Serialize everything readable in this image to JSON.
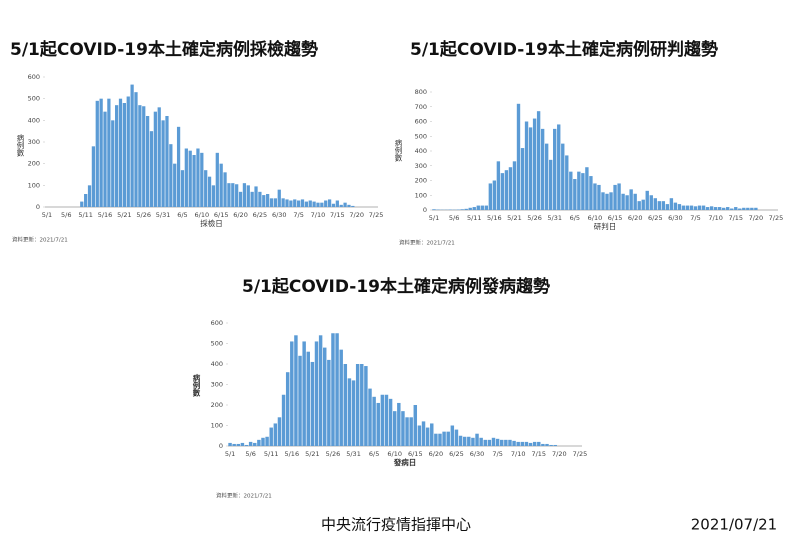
{
  "chart_data": [
    {
      "type": "bar",
      "title": "5/1起COVID-19本土確定病例採檢趨勢",
      "x_label": "採檢日",
      "y_label": "病例數",
      "source": "資料更新：2021/7/21",
      "color": "#5b9bd5",
      "categories": [
        "5/1",
        null,
        null,
        null,
        null,
        "5/6",
        null,
        null,
        null,
        null,
        "5/11",
        null,
        null,
        null,
        null,
        "5/16",
        null,
        null,
        null,
        null,
        "5/21",
        null,
        null,
        null,
        null,
        "5/26",
        null,
        null,
        null,
        null,
        "5/31",
        null,
        null,
        null,
        null,
        "6/5",
        null,
        null,
        null,
        null,
        "6/10",
        null,
        null,
        null,
        null,
        "6/15",
        null,
        null,
        null,
        null,
        "6/20",
        null,
        null,
        null,
        null,
        "6/25",
        null,
        null,
        null,
        null,
        "6/30",
        null,
        null,
        null,
        null,
        "7/5",
        null,
        null,
        null,
        null,
        "7/10",
        null,
        null,
        null,
        null,
        "7/15",
        null,
        null,
        null,
        null,
        "7/20",
        null,
        null,
        null,
        null,
        "7/25"
      ],
      "values": [
        0,
        0,
        0,
        0,
        0,
        0,
        0,
        0,
        0,
        25,
        60,
        100,
        280,
        490,
        500,
        440,
        500,
        400,
        470,
        500,
        480,
        510,
        565,
        530,
        470,
        465,
        420,
        350,
        440,
        460,
        400,
        420,
        290,
        200,
        370,
        170,
        270,
        260,
        240,
        270,
        250,
        170,
        140,
        100,
        250,
        200,
        160,
        110,
        110,
        105,
        70,
        110,
        100,
        70,
        95,
        70,
        55,
        60,
        40,
        40,
        80,
        40,
        35,
        30,
        35,
        30,
        35,
        25,
        30,
        25,
        20,
        20,
        30,
        35,
        15,
        30,
        10,
        20,
        10,
        5,
        0,
        0,
        0,
        0,
        0,
        0
      ],
      "ylim": [
        0,
        600
      ],
      "yticks": [
        0,
        100,
        200,
        300,
        400,
        500,
        600
      ]
    },
    {
      "type": "bar",
      "title": "5/1起COVID-19本土確定病例研判趨勢",
      "x_label": "研判日",
      "y_label": "病例數",
      "source": "資料更新：2021/7/21",
      "color": "#5b9bd5",
      "categories": [
        "5/1",
        null,
        null,
        null,
        null,
        "5/6",
        null,
        null,
        null,
        null,
        "5/11",
        null,
        null,
        null,
        null,
        "5/16",
        null,
        null,
        null,
        null,
        "5/21",
        null,
        null,
        null,
        null,
        "5/26",
        null,
        null,
        null,
        null,
        "5/31",
        null,
        null,
        null,
        null,
        "6/5",
        null,
        null,
        null,
        null,
        "6/10",
        null,
        null,
        null,
        null,
        "6/15",
        null,
        null,
        null,
        null,
        "6/20",
        null,
        null,
        null,
        null,
        "6/25",
        null,
        null,
        null,
        null,
        "6/30",
        null,
        null,
        null,
        null,
        "7/5",
        null,
        null,
        null,
        null,
        "7/10",
        null,
        null,
        null,
        null,
        "7/15",
        null,
        null,
        null,
        null,
        "7/20",
        null,
        null,
        null,
        null,
        "7/25"
      ],
      "values": [
        5,
        3,
        2,
        2,
        3,
        2,
        3,
        5,
        8,
        15,
        20,
        30,
        30,
        30,
        180,
        200,
        330,
        250,
        270,
        290,
        330,
        720,
        420,
        600,
        560,
        620,
        670,
        550,
        450,
        340,
        550,
        580,
        450,
        370,
        260,
        210,
        260,
        250,
        290,
        230,
        180,
        170,
        120,
        110,
        120,
        170,
        180,
        110,
        100,
        140,
        110,
        60,
        70,
        130,
        100,
        80,
        60,
        60,
        40,
        80,
        50,
        40,
        30,
        30,
        30,
        25,
        30,
        30,
        20,
        25,
        20,
        20,
        15,
        20,
        10,
        20,
        10,
        15,
        15,
        15,
        15,
        0,
        0,
        0,
        0,
        0
      ],
      "ylim": [
        0,
        800
      ],
      "yticks": [
        0,
        100,
        200,
        300,
        400,
        500,
        600,
        700,
        800
      ]
    },
    {
      "type": "bar",
      "title": "5/1起COVID-19本土確定病例發病趨勢",
      "x_label": "發病日",
      "y_label": "病例數",
      "source": "資料更新：2021/7/21",
      "color": "#5b9bd5",
      "categories": [
        "5/1",
        null,
        null,
        null,
        null,
        "5/6",
        null,
        null,
        null,
        null,
        "5/11",
        null,
        null,
        null,
        null,
        "5/16",
        null,
        null,
        null,
        null,
        "5/21",
        null,
        null,
        null,
        null,
        "5/26",
        null,
        null,
        null,
        null,
        "5/31",
        null,
        null,
        null,
        null,
        "6/5",
        null,
        null,
        null,
        null,
        "6/10",
        null,
        null,
        null,
        null,
        "6/15",
        null,
        null,
        null,
        null,
        "6/20",
        null,
        null,
        null,
        null,
        "6/25",
        null,
        null,
        null,
        null,
        "6/30",
        null,
        null,
        null,
        null,
        "7/5",
        null,
        null,
        null,
        null,
        "7/10",
        null,
        null,
        null,
        null,
        "7/15",
        null,
        null,
        null,
        null,
        "7/20",
        null,
        null,
        null,
        null,
        "7/25"
      ],
      "values": [
        15,
        10,
        10,
        15,
        5,
        20,
        15,
        30,
        40,
        45,
        90,
        110,
        140,
        250,
        360,
        510,
        540,
        440,
        510,
        460,
        410,
        510,
        540,
        480,
        420,
        550,
        550,
        470,
        400,
        330,
        320,
        400,
        400,
        390,
        280,
        240,
        210,
        250,
        250,
        230,
        170,
        210,
        170,
        140,
        140,
        200,
        100,
        120,
        90,
        110,
        60,
        60,
        70,
        70,
        100,
        80,
        50,
        45,
        45,
        40,
        60,
        40,
        30,
        30,
        40,
        35,
        30,
        30,
        30,
        25,
        20,
        20,
        20,
        15,
        20,
        20,
        10,
        10,
        5,
        5,
        0,
        0,
        0,
        0,
        0,
        0
      ],
      "ylim": [
        0,
        600
      ],
      "yticks": [
        0,
        100,
        200,
        300,
        400,
        500,
        600
      ]
    }
  ],
  "footer": {
    "agency": "中央流行疫情指揮中心",
    "date": "2021/07/21"
  }
}
